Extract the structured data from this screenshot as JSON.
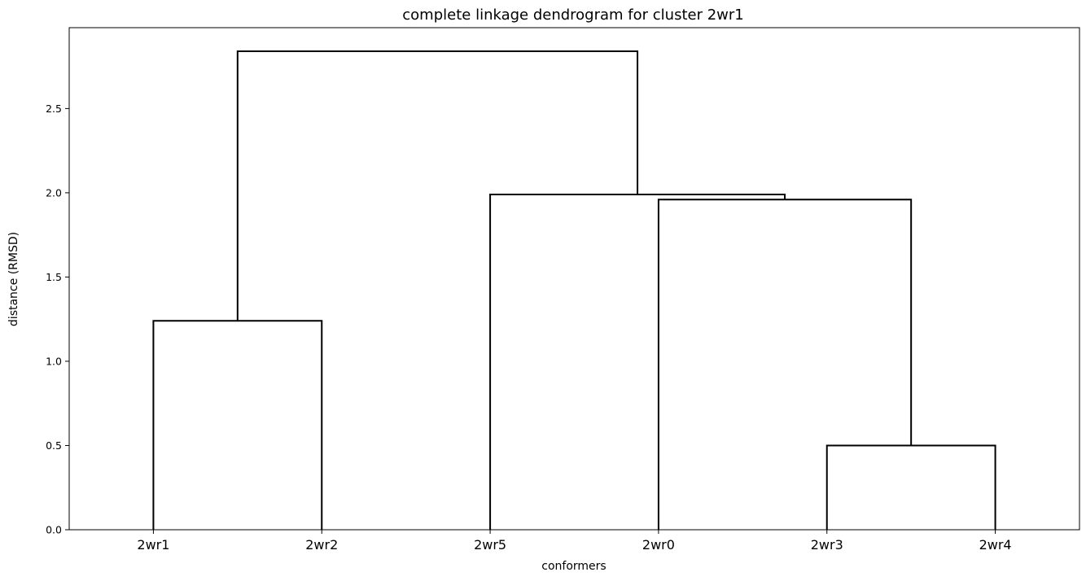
{
  "chart_data": {
    "type": "dendrogram",
    "title": "complete linkage dendrogram for cluster 2wr1",
    "xlabel": "conformers",
    "ylabel": "distance (RMSD)",
    "leaves": [
      "2wr1",
      "2wr2",
      "2wr5",
      "2wr0",
      "2wr3",
      "2wr4"
    ],
    "yticks": [
      0.0,
      0.5,
      1.0,
      1.5,
      2.0,
      2.5
    ],
    "ytick_labels": [
      "0.0",
      "0.5",
      "1.0",
      "1.5",
      "2.0",
      "2.5"
    ],
    "ylim": [
      0,
      2.98
    ],
    "grid": false,
    "merges": [
      {
        "id": "c1",
        "left": "2wr1",
        "right": "2wr2",
        "height": 1.24
      },
      {
        "id": "c2",
        "left": "2wr3",
        "right": "2wr4",
        "height": 0.5
      },
      {
        "id": "c3",
        "left": "2wr0",
        "right": "c2",
        "height": 1.96
      },
      {
        "id": "c4",
        "left": "2wr5",
        "right": "c3",
        "height": 1.99
      },
      {
        "id": "c5",
        "left": "c1",
        "right": "c4",
        "height": 2.84
      }
    ]
  }
}
